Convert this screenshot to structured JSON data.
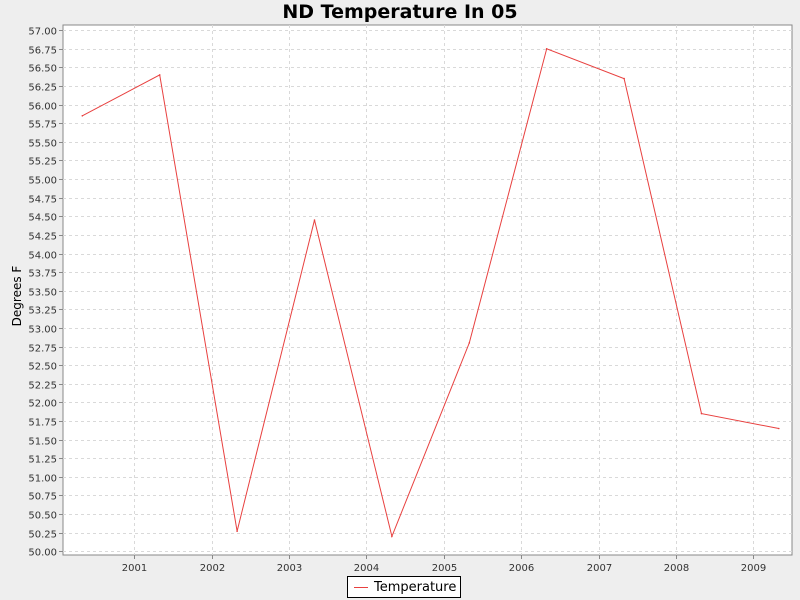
{
  "chart_data": {
    "type": "line",
    "title": "ND Temperature In 05",
    "xlabel": "",
    "ylabel": "Degrees F",
    "x_ticks": [
      "2001",
      "2002",
      "2003",
      "2004",
      "2005",
      "2006",
      "2007",
      "2008",
      "2009"
    ],
    "y_ticks": [
      "50.00",
      "50.25",
      "50.50",
      "50.75",
      "51.00",
      "51.25",
      "51.50",
      "51.75",
      "52.00",
      "52.25",
      "52.50",
      "52.75",
      "53.00",
      "53.25",
      "53.50",
      "53.75",
      "54.00",
      "54.25",
      "54.50",
      "54.75",
      "55.00",
      "55.25",
      "55.50",
      "55.75",
      "56.00",
      "56.25",
      "56.50",
      "56.75",
      "57.00"
    ],
    "ylim": [
      49.95,
      57.07
    ],
    "xlim": [
      2000.08,
      2009.5
    ],
    "grid": true,
    "legend_position": "bottom-center",
    "series": [
      {
        "name": "Temperature",
        "color": "#e8403f",
        "x": [
          2000.33,
          2001.33,
          2002.33,
          2003.33,
          2004.33,
          2005.33,
          2006.33,
          2007.33,
          2008.33,
          2009.33
        ],
        "y": [
          55.85,
          56.4,
          50.27,
          54.45,
          50.2,
          52.8,
          56.75,
          56.35,
          51.85,
          51.65
        ]
      }
    ]
  }
}
